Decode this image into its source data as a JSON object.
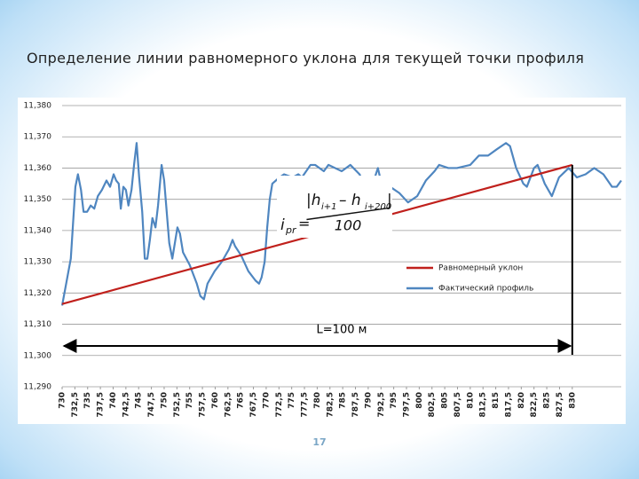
{
  "title": "Определение линии равномерного уклона для текущей точки профиля",
  "page_number": "17",
  "chart_data": {
    "type": "line",
    "grid": true,
    "xlim": [
      730,
      839.6
    ],
    "ylim": [
      11.29,
      11.38
    ],
    "yticks": [
      {
        "value": 11.29,
        "label": "11,290"
      },
      {
        "value": 11.3,
        "label": "11,300"
      },
      {
        "value": 11.31,
        "label": "11,310"
      },
      {
        "value": 11.32,
        "label": "11,320"
      },
      {
        "value": 11.33,
        "label": "11,330"
      },
      {
        "value": 11.34,
        "label": "11,340"
      },
      {
        "value": 11.35,
        "label": "11,350"
      },
      {
        "value": 11.36,
        "label": "11,360"
      },
      {
        "value": 11.37,
        "label": "11,370"
      },
      {
        "value": 11.38,
        "label": "11,380"
      }
    ],
    "xticks": [
      730,
      {
        "value": 732.5,
        "label": "732,5"
      },
      735,
      {
        "value": 737.5,
        "label": "737,5"
      },
      740,
      {
        "value": 742.5,
        "label": "742,5"
      },
      745,
      {
        "value": 747.5,
        "label": "747,5"
      },
      750,
      {
        "value": 752.5,
        "label": "752,5"
      },
      755,
      {
        "value": 757.5,
        "label": "757,5"
      },
      760,
      {
        "value": 762.5,
        "label": "762,5"
      },
      765,
      {
        "value": 767.5,
        "label": "767,5"
      },
      770,
      {
        "value": 772.5,
        "label": "772,5"
      },
      775,
      {
        "value": 777.5,
        "label": "777,5"
      },
      780,
      {
        "value": 782.5,
        "label": "782,5"
      },
      785,
      {
        "value": 787.5,
        "label": "787,5"
      },
      790,
      {
        "value": 792.5,
        "label": "792,5"
      },
      795,
      {
        "value": 797.5,
        "label": "797,5"
      },
      800,
      {
        "value": 802.5,
        "label": "802,5"
      },
      805,
      {
        "value": 807.5,
        "label": "807,5"
      },
      810,
      {
        "value": 812.5,
        "label": "812,5"
      },
      815,
      {
        "value": 817.5,
        "label": "817,5"
      },
      820,
      {
        "value": 822.5,
        "label": "822,5"
      },
      825,
      {
        "value": 827.5,
        "label": "827,5"
      },
      830
    ],
    "series": [
      {
        "name": "Равномерный уклон",
        "color": "#c0201c",
        "x": [
          730,
          830
        ],
        "values": [
          11.3165,
          11.361
        ]
      },
      {
        "name": "Фактический профиль",
        "color": "#4f86c0",
        "x": [
          730.0,
          731.7,
          732.6,
          733.1,
          733.7,
          734.2,
          734.9,
          735.6,
          736.3,
          737.0,
          737.8,
          738.7,
          739.4,
          740.1,
          740.6,
          741.1,
          741.5,
          742.0,
          742.5,
          743.0,
          743.6,
          744.1,
          744.6,
          745.1,
          745.7,
          746.2,
          746.7,
          747.2,
          747.7,
          748.3,
          748.8,
          749.5,
          750.0,
          750.5,
          751.0,
          751.6,
          752.1,
          752.6,
          753.1,
          753.7,
          755.0,
          756.4,
          757.1,
          757.8,
          758.5,
          759.9,
          761.3,
          762.7,
          763.4,
          763.9,
          765.1,
          766.5,
          767.9,
          768.6,
          769.1,
          769.7,
          770.2,
          770.7,
          771.2,
          772.6,
          773.5,
          775.2,
          776.3,
          777.0,
          778.7,
          779.6,
          781.3,
          782.2,
          784.8,
          786.5,
          788.3,
          789.1,
          790.0,
          790.9,
          791.9,
          792.6,
          794.3,
          796.1,
          797.8,
          799.6,
          801.3,
          803.0,
          803.9,
          805.7,
          807.4,
          810.0,
          811.7,
          813.5,
          815.2,
          817.0,
          817.8,
          819.0,
          820.4,
          821.1,
          822.5,
          823.2,
          824.6,
          826.0,
          827.4,
          829.3,
          830.9,
          832.6,
          834.3,
          836.1,
          837.8,
          838.7,
          839.6
        ],
        "values": [
          11.316,
          11.331,
          11.354,
          11.358,
          11.353,
          11.346,
          11.346,
          11.348,
          11.347,
          11.351,
          11.353,
          11.356,
          11.354,
          11.358,
          11.356,
          11.355,
          11.347,
          11.354,
          11.353,
          11.348,
          11.353,
          11.361,
          11.368,
          11.357,
          11.346,
          11.331,
          11.331,
          11.337,
          11.344,
          11.341,
          11.348,
          11.361,
          11.356,
          11.346,
          11.336,
          11.331,
          11.336,
          11.341,
          11.339,
          11.333,
          11.329,
          11.323,
          11.319,
          11.318,
          11.323,
          11.327,
          11.33,
          11.334,
          11.337,
          11.335,
          11.332,
          11.327,
          11.324,
          11.323,
          11.325,
          11.33,
          11.341,
          11.35,
          11.355,
          11.357,
          11.358,
          11.357,
          11.358,
          11.357,
          11.361,
          11.361,
          11.359,
          11.361,
          11.359,
          11.361,
          11.358,
          11.355,
          11.354,
          11.355,
          11.36,
          11.355,
          11.354,
          11.352,
          11.349,
          11.351,
          11.356,
          11.359,
          11.361,
          11.36,
          11.36,
          11.361,
          11.364,
          11.364,
          11.366,
          11.368,
          11.367,
          11.36,
          11.355,
          11.354,
          11.36,
          11.361,
          11.355,
          11.351,
          11.357,
          11.36,
          11.357,
          11.358,
          11.36,
          11.358,
          11.354,
          11.354,
          11.356
        ]
      }
    ],
    "annotations": {
      "length": "L=100 м",
      "formula": {
        "lhs": "i",
        "lhs_sub": "pr",
        "eq": "=",
        "h1": "|h",
        "h1_sub": "i+1",
        "minus": "– h",
        "h2_sub": "i+200",
        "bar": "|",
        "denominator": "100"
      }
    }
  }
}
